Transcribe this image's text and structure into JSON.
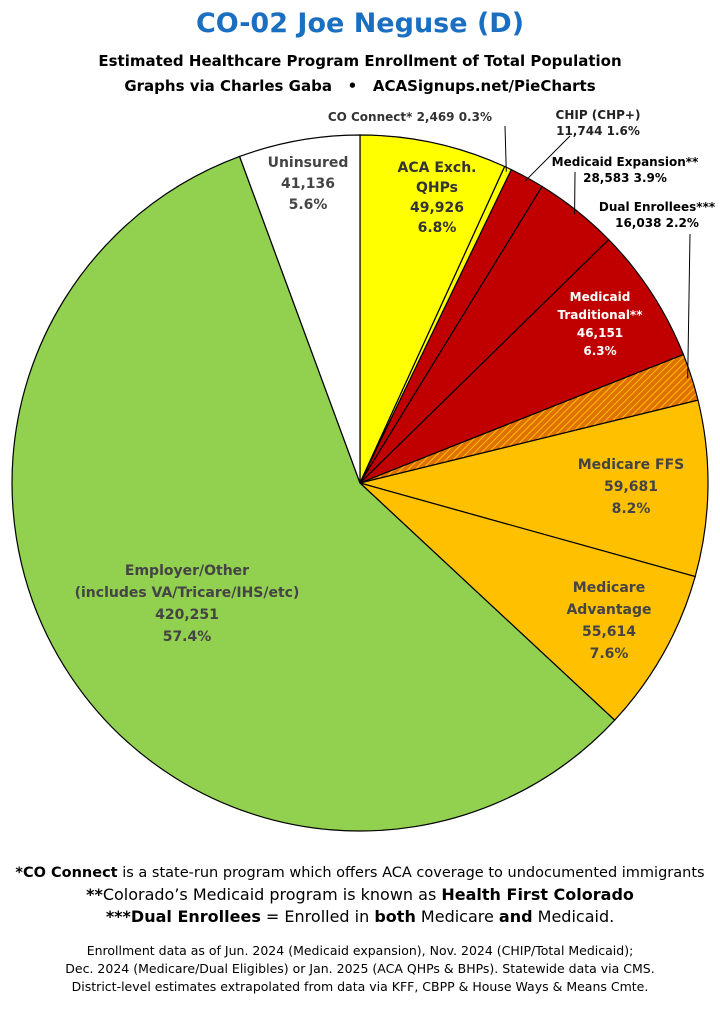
{
  "title": "CO-02 Joe Neguse (D)",
  "subtitle": "Estimated Healthcare Program Enrollment of Total Population",
  "credit": "Graphs via Charles Gaba   •   ACASignups.net/PieCharts",
  "chart_data": {
    "type": "pie",
    "start_angle_deg": 0,
    "direction": "clockwise",
    "slices": [
      {
        "name": "ACA Exch. QHPs",
        "value": 49926,
        "percent": "6.8%",
        "color": "#ffff00",
        "label_lines": [
          "ACA Exch.",
          "QHPs",
          "49,926",
          "6.8%"
        ]
      },
      {
        "name": "CO Connect*",
        "value": 2469,
        "percent": "0.3%",
        "color": "#ffff00",
        "label_lines": [
          "CO Connect* 2,469 0.3%"
        ]
      },
      {
        "name": "CHIP (CHP+)",
        "value": 11744,
        "percent": "1.6%",
        "color": "#c00000",
        "label_lines": [
          "CHIP (CHP+)",
          "11,744 1.6%"
        ]
      },
      {
        "name": "Medicaid Expansion**",
        "value": 28583,
        "percent": "3.9%",
        "color": "#c00000",
        "label_lines": [
          "Medicaid Expansion**",
          "28,583 3.9%"
        ]
      },
      {
        "name": "Medicaid Traditional**",
        "value": 46151,
        "percent": "6.3%",
        "color": "#c00000",
        "label_lines": [
          "Medicaid",
          "Traditional**",
          "46,151",
          "6.3%"
        ]
      },
      {
        "name": "Dual Enrollees***",
        "value": 16038,
        "percent": "2.2%",
        "color": "#e07000",
        "hatched": true,
        "label_lines": [
          "Dual Enrollees***",
          "16,038 2.2%"
        ]
      },
      {
        "name": "Medicare FFS",
        "value": 59681,
        "percent": "8.2%",
        "color": "#ffc000",
        "label_lines": [
          "Medicare FFS",
          "59,681",
          "8.2%"
        ]
      },
      {
        "name": "Medicare Advantage",
        "value": 55614,
        "percent": "7.6%",
        "color": "#ffc000",
        "label_lines": [
          "Medicare",
          "Advantage",
          "55,614",
          "7.6%"
        ]
      },
      {
        "name": "Employer/Other (includes VA/Tricare/IHS/etc)",
        "value": 420251,
        "percent": "57.4%",
        "color": "#92d050",
        "label_lines": [
          "Employer/Other",
          "(includes VA/Tricare/IHS/etc)",
          "420,251",
          "57.4%"
        ]
      },
      {
        "name": "Uninsured",
        "value": 41136,
        "percent": "5.6%",
        "color": "#ffffff",
        "label_lines": [
          "Uninsured",
          "41,136",
          "5.6%"
        ]
      }
    ]
  },
  "notes": {
    "n1_bold": "*CO Connect",
    "n1_rest": " is a state-run program which offers ACA coverage to undocumented immigrants",
    "n2_bold": "**",
    "n2_a": "Colorado’s Medicaid program is known as ",
    "n2_b": "Health First Colorado",
    "n3_bold": "***Dual Enrollees",
    "n3_a": " = Enrolled in ",
    "n3_b": "both",
    "n3_c": " Medicare ",
    "n3_d": "and",
    "n3_e": " Medicaid."
  },
  "source": {
    "line1": "Enrollment data as of Jun. 2024 (Medicaid expansion), Nov. 2024 (CHIP/Total Medicaid);",
    "line2": "Dec. 2024 (Medicare/Dual Eligibles) or Jan. 2025 (ACA QHPs & BHPs). Statewide data via CMS.",
    "line3": "District-level estimates extrapolated from data via KFF, CBPP & House Ways & Means Cmte."
  }
}
